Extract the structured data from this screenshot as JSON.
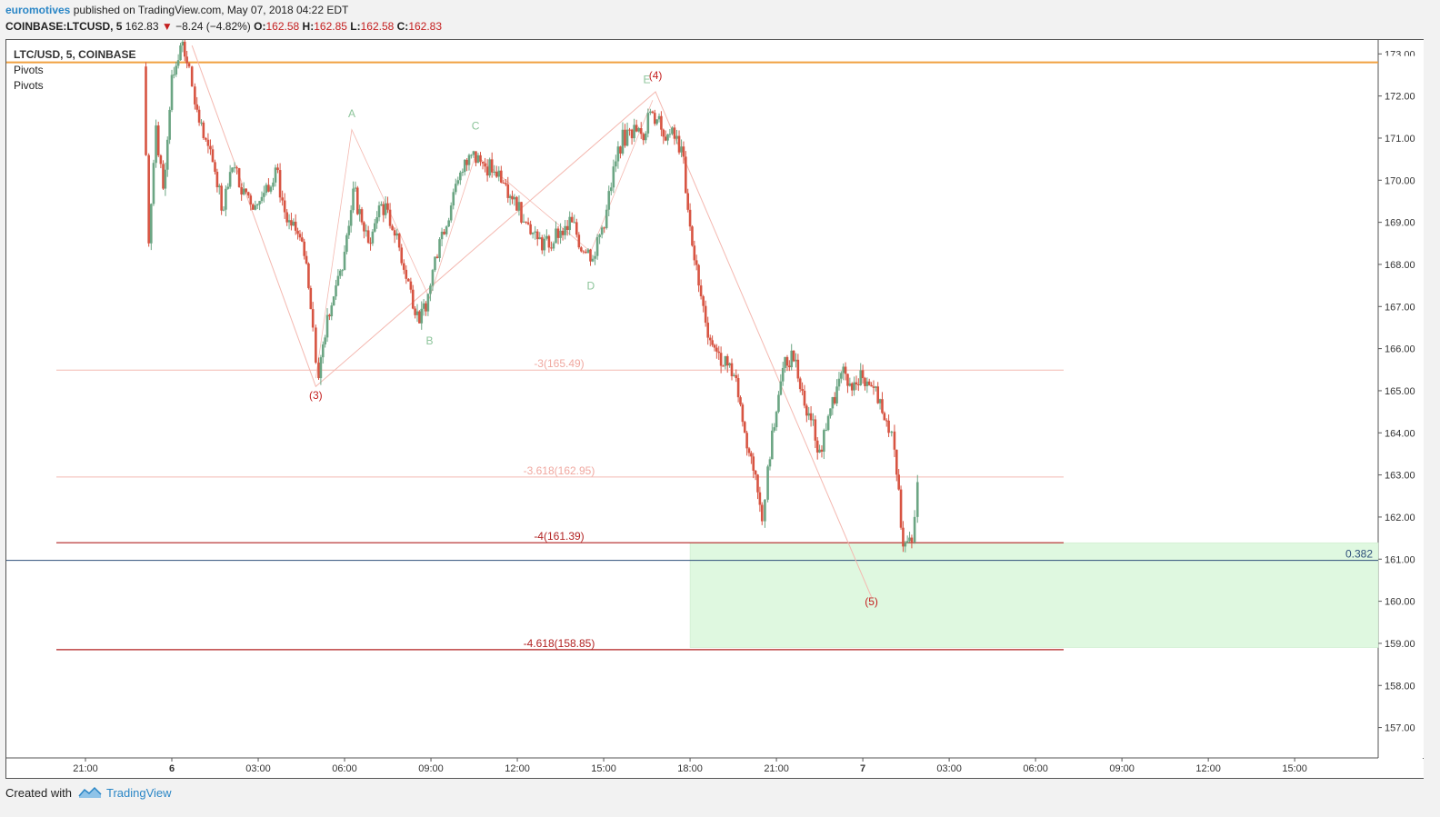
{
  "header": {
    "author": "euromotives",
    "published": " published on TradingView.com, May 07, 2018 04:22 EDT",
    "symbol": "COINBASE:LTCUSD, 5",
    "last": "162.83",
    "change": "−8.24 (−4.82%)",
    "o_label": "O:",
    "o_val": "162.58",
    "h_label": "H:",
    "h_val": "162.85",
    "l_label": "L:",
    "l_val": "162.58",
    "c_label": "C:",
    "c_val": "162.83",
    "arrow": "▼"
  },
  "legend": {
    "symbol": "LTC/USD, 5, COINBASE",
    "ind1": "Pivots",
    "ind2": "Pivots"
  },
  "footer": {
    "created": "Created with",
    "brand": "TradingView"
  },
  "colors": {
    "up": "#6ba583",
    "down": "#d75442",
    "orange": "#f0a040",
    "fibLight": "#f3b9b0",
    "fibDark": "#b22222",
    "zone": "#dff8e0",
    "blueLine": "#2e4f7a"
  },
  "chart_data": {
    "type": "candlestick",
    "title": "LTC/USD, 5, COINBASE",
    "ylim": [
      156.3,
      173.5
    ],
    "y_ticks": [
      "173.00",
      "172.00",
      "171.00",
      "170.00",
      "169.00",
      "168.00",
      "167.00",
      "166.00",
      "165.00",
      "164.00",
      "163.00",
      "162.00",
      "161.00",
      "160.00",
      "159.00",
      "158.00",
      "157.00"
    ],
    "x_ticks": [
      "21:00",
      "6",
      "03:00",
      "06:00",
      "09:00",
      "12:00",
      "15:00",
      "18:00",
      "21:00",
      "7",
      "03:00",
      "06:00",
      "09:00",
      "12:00",
      "15:00"
    ],
    "price_path": [
      [
        2.0,
        172.7
      ],
      [
        2.2,
        168.5
      ],
      [
        2.45,
        171.3
      ],
      [
        2.7,
        169.8
      ],
      [
        3.0,
        172.5
      ],
      [
        3.3,
        173.2
      ],
      [
        3.6,
        172.7
      ],
      [
        3.8,
        171.8
      ],
      [
        4.1,
        171.0
      ],
      [
        4.5,
        170.2
      ],
      [
        4.8,
        169.3
      ],
      [
        5.1,
        170.3
      ],
      [
        5.5,
        169.8
      ],
      [
        5.9,
        169.4
      ],
      [
        6.2,
        169.7
      ],
      [
        6.6,
        170.3
      ],
      [
        7.0,
        169.0
      ],
      [
        7.3,
        168.8
      ],
      [
        7.6,
        168.2
      ],
      [
        7.9,
        166.5
      ],
      [
        8.1,
        165.3
      ],
      [
        8.4,
        166.8
      ],
      [
        8.7,
        167.5
      ],
      [
        9.0,
        168.3
      ],
      [
        9.3,
        169.8
      ],
      [
        9.6,
        169.0
      ],
      [
        9.9,
        168.5
      ],
      [
        10.2,
        169.4
      ],
      [
        10.5,
        169.3
      ],
      [
        10.9,
        168.4
      ],
      [
        11.3,
        167.4
      ],
      [
        11.6,
        166.6
      ],
      [
        11.9,
        167.3
      ],
      [
        12.3,
        168.6
      ],
      [
        12.7,
        169.4
      ],
      [
        13.1,
        170.2
      ],
      [
        13.4,
        170.6
      ],
      [
        13.8,
        170.4
      ],
      [
        14.2,
        170.2
      ],
      [
        14.6,
        169.9
      ],
      [
        14.9,
        169.6
      ],
      [
        15.3,
        169.0
      ],
      [
        15.7,
        168.6
      ],
      [
        16.1,
        168.4
      ],
      [
        16.5,
        168.8
      ],
      [
        16.9,
        169.0
      ],
      [
        17.3,
        168.3
      ],
      [
        17.7,
        168.2
      ],
      [
        18.1,
        169.3
      ],
      [
        18.5,
        170.8
      ],
      [
        18.9,
        171.2
      ],
      [
        19.3,
        171.1
      ],
      [
        19.7,
        171.6
      ],
      [
        20.0,
        171.2
      ],
      [
        20.3,
        171.1
      ],
      [
        20.7,
        170.8
      ],
      [
        21.0,
        168.9
      ],
      [
        21.3,
        167.5
      ],
      [
        21.7,
        166.2
      ],
      [
        22.0,
        165.9
      ],
      [
        22.3,
        165.6
      ],
      [
        22.6,
        165.3
      ],
      [
        22.9,
        164.0
      ],
      [
        23.2,
        163.1
      ],
      [
        23.5,
        161.9
      ],
      [
        23.7,
        163.2
      ],
      [
        24.0,
        164.5
      ],
      [
        24.3,
        165.8
      ],
      [
        24.6,
        165.7
      ],
      [
        24.9,
        165.0
      ],
      [
        25.2,
        164.3
      ],
      [
        25.5,
        163.6
      ],
      [
        25.8,
        164.4
      ],
      [
        26.1,
        165.1
      ],
      [
        26.4,
        165.4
      ],
      [
        26.7,
        165.2
      ],
      [
        27.0,
        165.3
      ],
      [
        27.3,
        165.1
      ],
      [
        27.6,
        164.8
      ],
      [
        27.9,
        164.0
      ],
      [
        28.1,
        163.6
      ],
      [
        28.4,
        161.3
      ],
      [
        28.7,
        161.4
      ],
      [
        28.9,
        162.83
      ]
    ],
    "horizontal_lines": [
      {
        "label": "",
        "value": 172.8,
        "color": "orange"
      },
      {
        "label": "-3(165.49)",
        "value": 165.49,
        "color": "fibLight"
      },
      {
        "label": "-3.618(162.95)",
        "value": 162.95,
        "color": "fibLight"
      },
      {
        "label": "-4(161.39)",
        "value": 161.39,
        "color": "fibDark"
      },
      {
        "label": "-4.618(158.85)",
        "value": 158.85,
        "color": "fibDark"
      }
    ],
    "marker_line": {
      "label": "0.382",
      "value": 160.97
    },
    "target_zone": {
      "from_h": 21.0,
      "y_top": 161.39,
      "y_bottom": 158.9
    },
    "wave_labels": [
      {
        "text": "(3)",
        "h": 8.0,
        "y": 164.8,
        "color": "red"
      },
      {
        "text": "(4)",
        "h": 19.8,
        "y": 172.4,
        "color": "red"
      },
      {
        "text": "(5)",
        "h": 27.3,
        "y": 159.9,
        "color": "red"
      },
      {
        "text": "A",
        "h": 9.25,
        "y": 171.5,
        "color": "green"
      },
      {
        "text": "B",
        "h": 11.95,
        "y": 166.1,
        "color": "green"
      },
      {
        "text": "C",
        "h": 13.55,
        "y": 171.2,
        "color": "green"
      },
      {
        "text": "D",
        "h": 17.55,
        "y": 167.4,
        "color": "green"
      },
      {
        "text": "E",
        "h": 19.5,
        "y": 172.3,
        "color": "green"
      }
    ],
    "wave_path": [
      [
        3.7,
        173.2
      ],
      [
        8.0,
        165.1
      ],
      [
        19.8,
        172.1
      ],
      [
        27.3,
        160.1
      ]
    ]
  }
}
